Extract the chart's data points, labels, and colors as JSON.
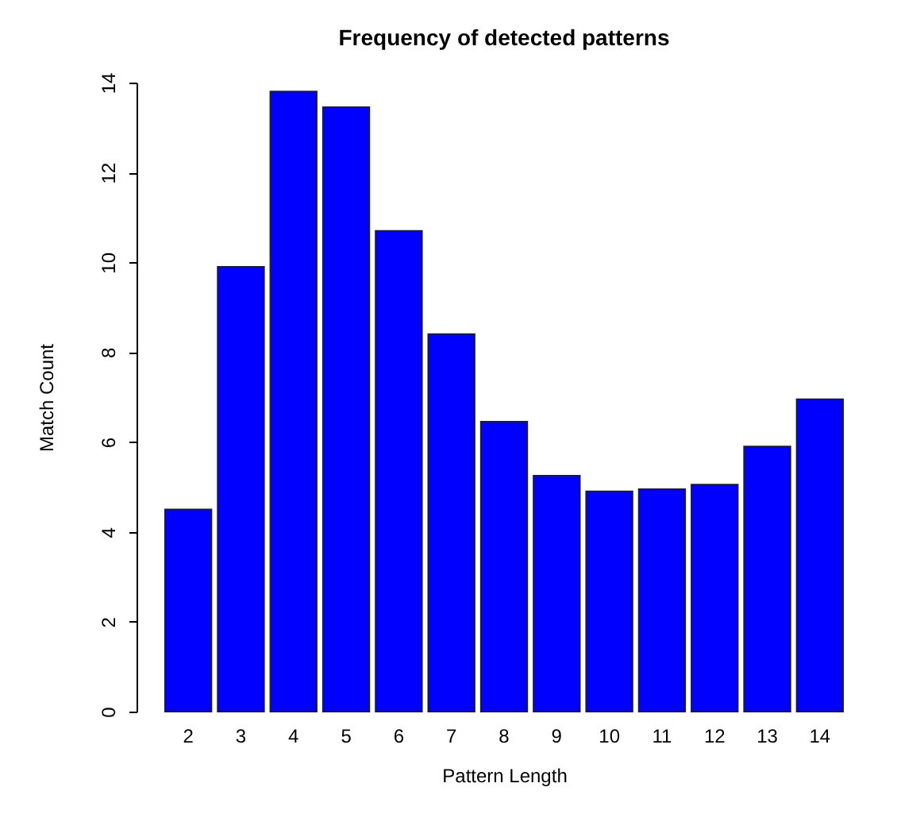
{
  "chart_data": {
    "type": "bar",
    "title": "Frequency of detected patterns",
    "xlabel": "Pattern Length",
    "ylabel": "Match Count",
    "categories": [
      "2",
      "3",
      "4",
      "5",
      "6",
      "7",
      "8",
      "9",
      "10",
      "11",
      "12",
      "13",
      "14"
    ],
    "values": [
      4.5,
      9.9,
      13.8,
      13.45,
      10.7,
      8.4,
      6.45,
      5.25,
      4.9,
      4.95,
      5.05,
      5.9,
      6.95
    ],
    "color": "#0000ff",
    "ylim": [
      0,
      14
    ],
    "yticks": [
      0,
      2,
      4,
      6,
      8,
      10,
      12,
      14
    ],
    "grid": false
  }
}
